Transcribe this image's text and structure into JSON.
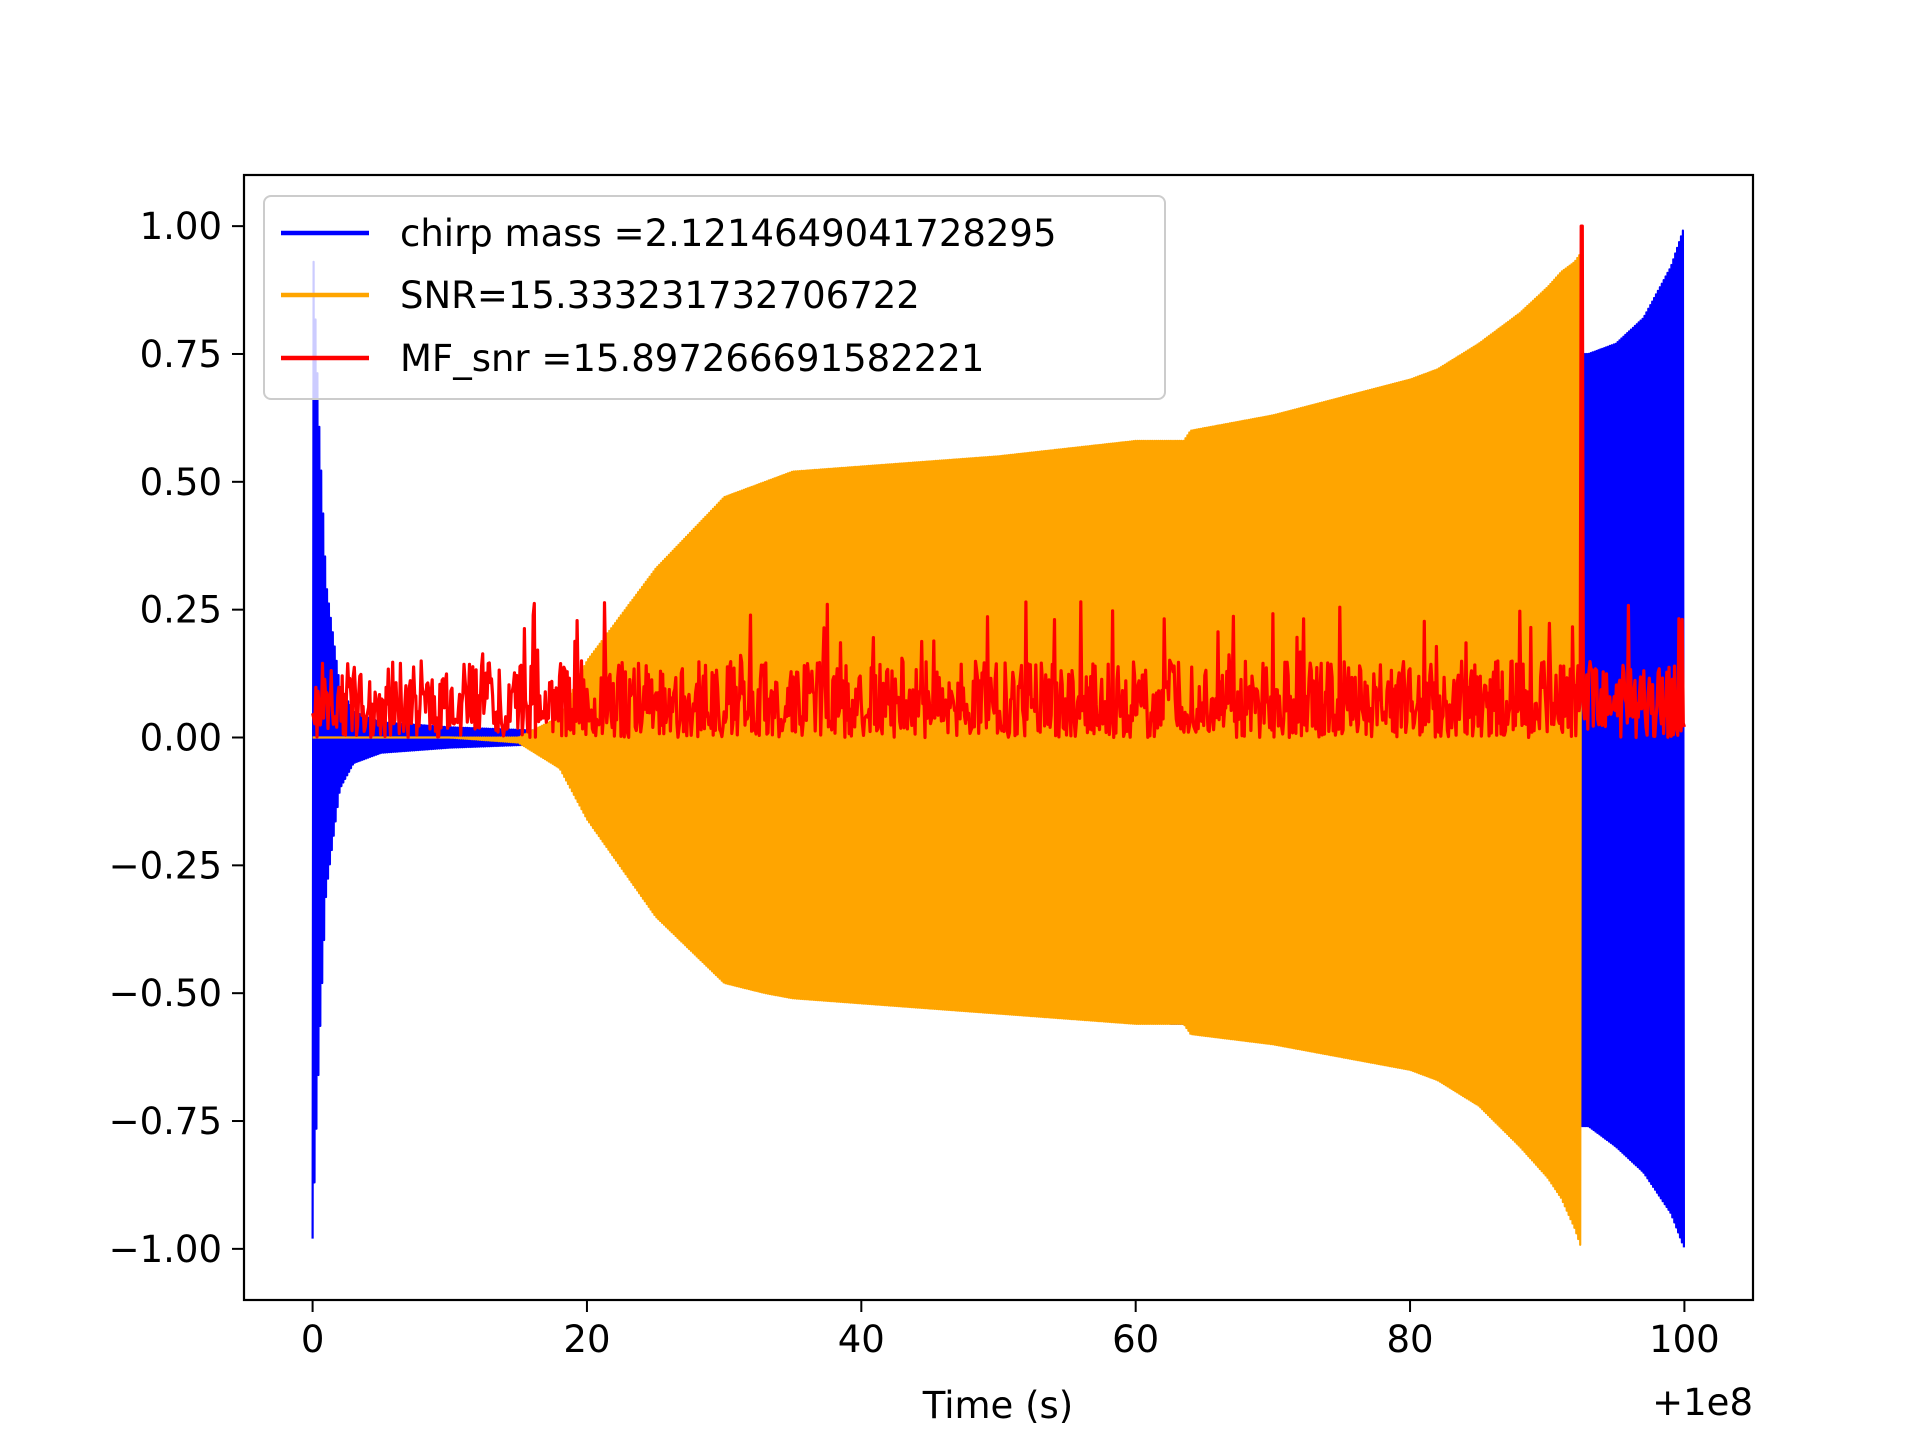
{
  "chart_data": {
    "type": "line",
    "title": "",
    "xlabel": "Time (s)",
    "ylabel": "",
    "x_offset_label": "+1e8",
    "xlim": [
      -5,
      105
    ],
    "ylim": [
      -1.1,
      1.1
    ],
    "x_ticks": [
      0,
      20,
      40,
      60,
      80,
      100
    ],
    "x_tick_labels": [
      "0",
      "20",
      "40",
      "60",
      "80",
      "100"
    ],
    "y_ticks": [
      1.0,
      0.75,
      0.5,
      0.25,
      0.0,
      -0.25,
      -0.5,
      -0.75,
      -1.0
    ],
    "y_tick_labels": [
      "1.00",
      "0.75",
      "0.50",
      "0.25",
      "0.00",
      "−0.25",
      "−0.50",
      "−0.75",
      "−1.00"
    ],
    "grid": false,
    "legend_position": "top-left",
    "series": [
      {
        "name": "chirp mass =2.1214649041728295",
        "color": "#0000ff",
        "x": [
          0,
          0.1,
          0.5,
          1,
          2,
          3,
          5,
          10,
          20,
          30,
          40,
          50,
          60,
          62.5,
          63.5,
          70,
          80,
          81.8,
          82.3,
          90,
          92.5,
          93,
          95,
          97,
          99,
          100
        ],
        "upper": [
          1.0,
          0.9,
          0.6,
          0.3,
          0.1,
          0.05,
          0.03,
          0.02,
          0.01,
          0.01,
          0.01,
          0.01,
          0.01,
          0.55,
          0.55,
          0.01,
          0.01,
          0.65,
          0.65,
          0.01,
          0.75,
          0.75,
          0.77,
          0.82,
          0.92,
          1.0
        ],
        "lower": [
          -0.98,
          -0.9,
          -0.6,
          -0.3,
          -0.1,
          -0.05,
          -0.03,
          -0.02,
          -0.01,
          -0.01,
          -0.01,
          -0.01,
          -0.01,
          -0.56,
          -0.56,
          -0.01,
          -0.01,
          -0.01,
          -0.01,
          -0.01,
          -0.76,
          -0.76,
          -0.8,
          -0.85,
          -0.93,
          -1.0
        ]
      },
      {
        "name": "SNR=15.333231732706722",
        "color": "#ffa500",
        "x": [
          0,
          5,
          10,
          15,
          18,
          20,
          25,
          30,
          33,
          35,
          40,
          50,
          60,
          62.5,
          63.5,
          64,
          70,
          80,
          82,
          85,
          88,
          90,
          91,
          92,
          92.5
        ],
        "upper": [
          0.0,
          0.0,
          0.0,
          0.0,
          0.04,
          0.15,
          0.33,
          0.47,
          0.5,
          0.52,
          0.53,
          0.55,
          0.58,
          0.58,
          0.58,
          0.6,
          0.63,
          0.7,
          0.72,
          0.77,
          0.83,
          0.88,
          0.91,
          0.93,
          0.95
        ],
        "lower": [
          0.0,
          0.0,
          0.0,
          -0.01,
          -0.06,
          -0.16,
          -0.35,
          -0.48,
          -0.5,
          -0.51,
          -0.52,
          -0.54,
          -0.56,
          -0.56,
          -0.56,
          -0.58,
          -0.6,
          -0.65,
          -0.67,
          -0.72,
          -0.8,
          -0.86,
          -0.9,
          -0.96,
          -1.0
        ]
      },
      {
        "name": "MF_snr =15.897266691582221",
        "color": "#ff0000",
        "x_start": 0,
        "x_end": 100,
        "band": [
          0.0,
          0.2
        ],
        "spike_x": 92.5,
        "spike_y": 1.0
      }
    ]
  }
}
